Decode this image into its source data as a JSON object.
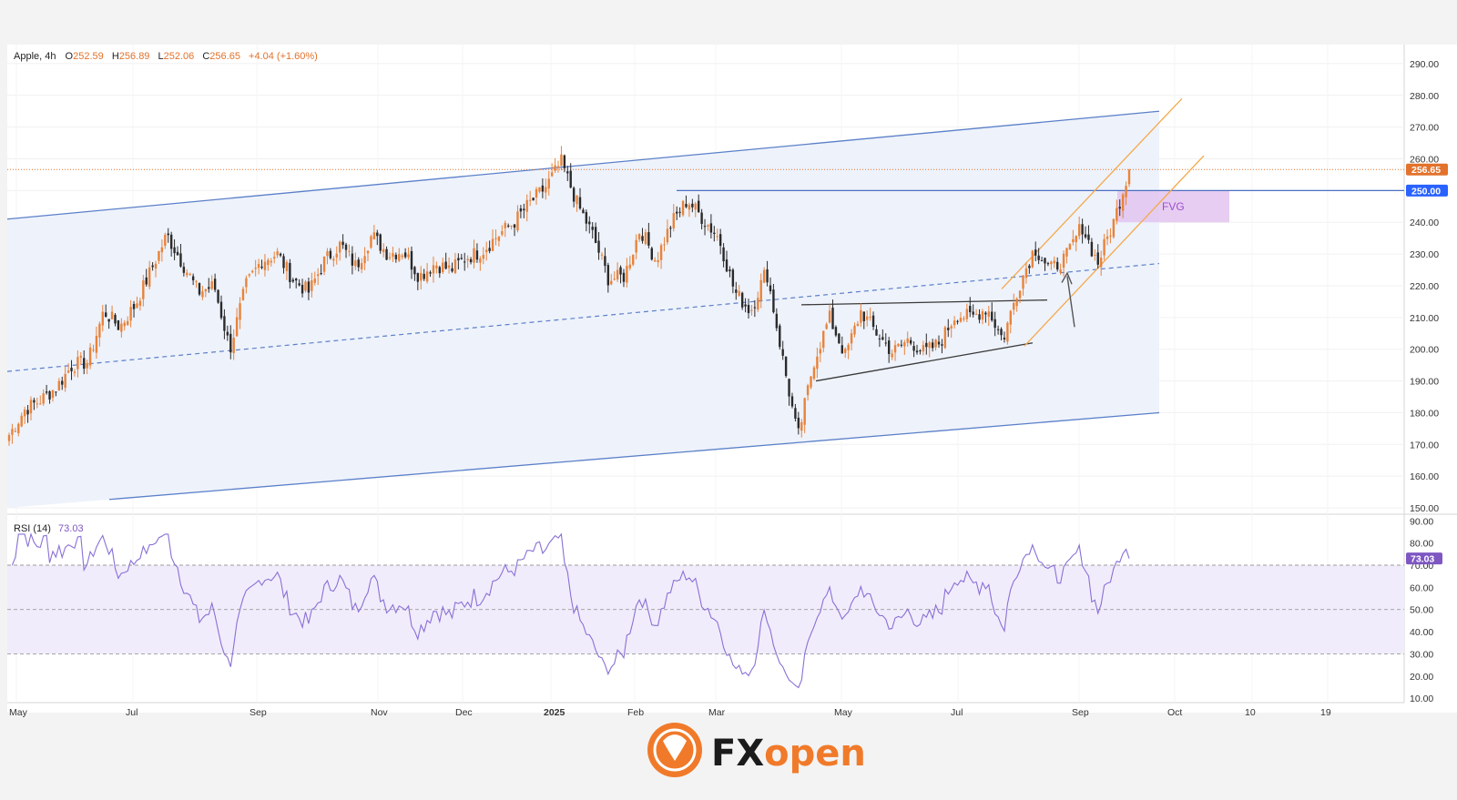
{
  "header": {
    "symbol": "Apple, 4h",
    "o_label": "O",
    "o_value": "252.59",
    "h_label": "H",
    "h_value": "256.89",
    "l_label": "L",
    "l_value": "252.06",
    "c_label": "C",
    "c_value": "256.65",
    "change": "+4.04 (+1.60%)"
  },
  "price_badges": {
    "last_price": "256.65",
    "level": "250.00"
  },
  "annotations": {
    "fvg": "FVG"
  },
  "rsi": {
    "label": "RSI (14)",
    "value": "73.03",
    "ticks": [
      "90.00",
      "80.00",
      "70.00",
      "60.00",
      "50.00",
      "40.00",
      "30.00",
      "20.00",
      "10.00"
    ]
  },
  "logo": {
    "brand_fx": "FX",
    "brand_open": "open"
  },
  "colors": {
    "up": "#e8833a",
    "down": "#2a2a2a",
    "channel": "#5b80c9",
    "channel_fill": "#eef2fb",
    "orange_channel": "#f4a94a",
    "fvg": "#e2c4ee",
    "rsi_line": "#8a70d6",
    "rsi_band": "#f1ecfb",
    "last_price_badge": "#e2722c",
    "level_badge": "#2962ff"
  },
  "chart_data": [
    {
      "type": "candlestick",
      "title": "Apple, 4h",
      "x_ticks": [
        "May",
        "Jul",
        "Sep",
        "Nov",
        "Dec",
        "2025",
        "Feb",
        "Mar",
        "May",
        "Jul",
        "Sep",
        "Oct",
        "10",
        "19"
      ],
      "y_ticks": [
        "290.00",
        "280.00",
        "270.00",
        "260.00",
        "250.00",
        "240.00",
        "230.00",
        "220.00",
        "210.00",
        "200.00",
        "190.00",
        "180.00",
        "170.00",
        "160.00",
        "150.00"
      ],
      "ylim": [
        148,
        296
      ],
      "anchors": [
        [
          "May",
          173
        ],
        [
          "May",
          181
        ],
        [
          "May",
          184
        ],
        [
          "Jun",
          188
        ],
        [
          "Jun",
          195
        ],
        [
          "Jun",
          196
        ],
        [
          "Jun",
          212
        ],
        [
          "Jun",
          207
        ],
        [
          "Jul",
          214
        ],
        [
          "Jul",
          225
        ],
        [
          "Jul",
          236
        ],
        [
          "Jul",
          227
        ],
        [
          "Jul",
          218
        ],
        [
          "Aug",
          220
        ],
        [
          "Aug",
          200
        ],
        [
          "Aug",
          220
        ],
        [
          "Aug",
          228
        ],
        [
          "Aug",
          230
        ],
        [
          "Sep",
          222
        ],
        [
          "Sep",
          218
        ],
        [
          "Sep",
          228
        ],
        [
          "Sep",
          233
        ],
        [
          "Oct",
          226
        ],
        [
          "Oct",
          236
        ],
        [
          "Oct",
          230
        ],
        [
          "Oct",
          231
        ],
        [
          "Nov",
          223
        ],
        [
          "Nov",
          227
        ],
        [
          "Nov",
          225
        ],
        [
          "Nov",
          229
        ],
        [
          "Nov",
          231
        ],
        [
          "Dec",
          236
        ],
        [
          "Dec",
          240
        ],
        [
          "Dec",
          246
        ],
        [
          "Dec",
          251
        ],
        [
          "Dec",
          259
        ],
        [
          "Jan",
          246
        ],
        [
          "Jan",
          236
        ],
        [
          "Jan",
          222
        ],
        [
          "Jan",
          223
        ],
        [
          "Feb",
          238
        ],
        [
          "Feb",
          228
        ],
        [
          "Feb",
          240
        ],
        [
          "Feb",
          247
        ],
        [
          "Mar",
          241
        ],
        [
          "Mar",
          235
        ],
        [
          "Mar",
          218
        ],
        [
          "Mar",
          212
        ],
        [
          "Mar",
          225
        ],
        [
          "Apr",
          198
        ],
        [
          "Apr",
          172
        ],
        [
          "Apr",
          196
        ],
        [
          "Apr",
          210
        ],
        [
          "Apr",
          198
        ],
        [
          "May",
          212
        ],
        [
          "May",
          205
        ],
        [
          "May",
          199
        ],
        [
          "Jun",
          203
        ],
        [
          "Jun",
          199
        ],
        [
          "Jun",
          202
        ],
        [
          "Jul",
          211
        ],
        [
          "Jul",
          210
        ],
        [
          "Jul",
          213
        ],
        [
          "Aug",
          203
        ],
        [
          "Aug",
          220
        ],
        [
          "Aug",
          232
        ],
        [
          "Aug",
          225
        ],
        [
          "Aug",
          229
        ],
        [
          "Sep",
          239
        ],
        [
          "Sep",
          227
        ],
        [
          "Sep",
          240
        ],
        [
          "Sep",
          256.65
        ]
      ],
      "last_price": 256.65,
      "horizontal_level": 250,
      "fvg_zone": [
        240,
        250
      ],
      "channel": {
        "upper": [
          [
            241,
            275
          ]
        ],
        "lower": [
          [
            150,
            180
          ]
        ],
        "mid": [
          [
            193,
            227
          ]
        ]
      }
    },
    {
      "type": "line",
      "title": "RSI (14)",
      "ylim": [
        8,
        93
      ],
      "y_ticks": [
        90,
        80,
        70,
        60,
        50,
        40,
        30,
        20,
        10
      ],
      "bands": [
        70,
        50,
        30
      ],
      "last_value": 73.03
    }
  ]
}
